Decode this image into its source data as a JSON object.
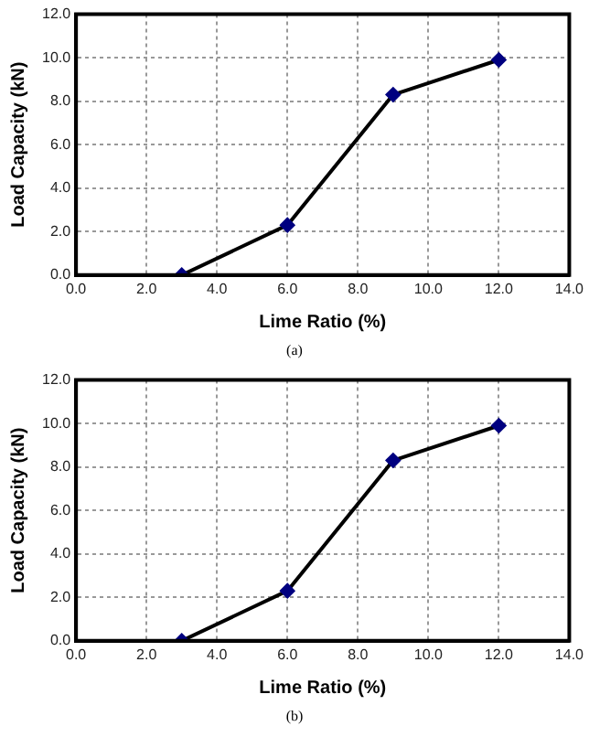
{
  "chart_data": [
    {
      "type": "line",
      "xlabel": "Lime Ratio (%)",
      "ylabel": "Load Capacity (kN)",
      "annotations": [
        "(a)"
      ],
      "x": [
        3,
        6,
        9,
        12
      ],
      "series": [
        {
          "color": "#000000",
          "values": [
            0,
            2.3,
            8.3,
            9.9
          ]
        }
      ],
      "xlim": [
        0,
        14
      ],
      "xticks": [
        {
          "value": 0,
          "label": "0.0"
        },
        {
          "value": 2,
          "label": "2.0"
        },
        {
          "value": 4,
          "label": "4.0"
        },
        {
          "value": 6,
          "label": "6.0"
        },
        {
          "value": 8,
          "label": "8.0"
        },
        {
          "value": 10,
          "label": "10.0"
        },
        {
          "value": 12,
          "label": "12.0"
        },
        {
          "value": 14,
          "label": "14.0"
        }
      ],
      "ylim": [
        0,
        12
      ],
      "yticks": [
        {
          "value": 0,
          "label": "0.0"
        },
        {
          "value": 2,
          "label": "2.0"
        },
        {
          "value": 4,
          "label": "4.0"
        },
        {
          "value": 6,
          "label": "6.0"
        },
        {
          "value": 8,
          "label": "8.0"
        },
        {
          "value": 10,
          "label": "10.0"
        },
        {
          "value": 12,
          "label": "12.0"
        }
      ],
      "grid": true,
      "marker": "diamond",
      "line_style": "solid"
    },
    {
      "type": "line",
      "xlabel": "Lime Ratio (%)",
      "ylabel": "Load Capacity (kN)",
      "annotations": [
        "(b)"
      ],
      "x": [
        3,
        6,
        9,
        12
      ],
      "series": [
        {
          "color": "#000000",
          "values": [
            0,
            2.3,
            8.3,
            9.9
          ]
        }
      ],
      "xlim": [
        0,
        14
      ],
      "xticks": [
        {
          "value": 0,
          "label": "0.0"
        },
        {
          "value": 2,
          "label": "2.0"
        },
        {
          "value": 4,
          "label": "4.0"
        },
        {
          "value": 6,
          "label": "6.0"
        },
        {
          "value": 8,
          "label": "8.0"
        },
        {
          "value": 10,
          "label": "10.0"
        },
        {
          "value": 12,
          "label": "12.0"
        },
        {
          "value": 14,
          "label": "14.0"
        }
      ],
      "ylim": [
        0,
        12
      ],
      "yticks": [
        {
          "value": 0,
          "label": "0.0"
        },
        {
          "value": 2,
          "label": "2.0"
        },
        {
          "value": 4,
          "label": "4.0"
        },
        {
          "value": 6,
          "label": "6.0"
        },
        {
          "value": 8,
          "label": "8.0"
        },
        {
          "value": 10,
          "label": "10.0"
        },
        {
          "value": 12,
          "label": "12.0"
        }
      ],
      "grid": true,
      "marker": "diamond",
      "line_style": "solid"
    }
  ]
}
